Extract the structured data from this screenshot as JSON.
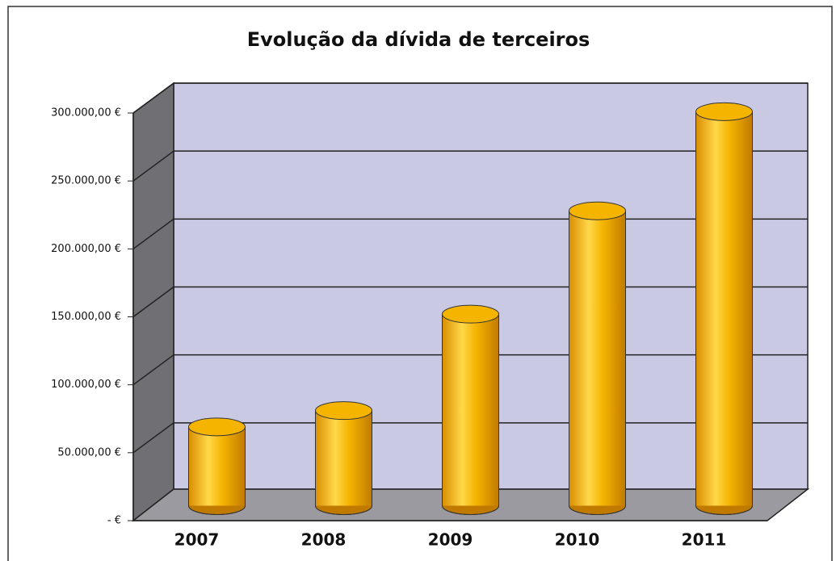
{
  "chart_data": {
    "type": "bar3d",
    "title": "Evolução da dívida de terceiros",
    "categories": [
      "2007",
      "2008",
      "2009",
      "2010",
      "2011"
    ],
    "values": [
      58000,
      70000,
      141000,
      217000,
      290000
    ],
    "color": "#f5b400",
    "ylim": [
      0,
      300000
    ],
    "yticks": [
      {
        "value": 0,
        "label": "- €"
      },
      {
        "value": 50000,
        "label": "50.000,00 €"
      },
      {
        "value": 100000,
        "label": "100.000,00 €"
      },
      {
        "value": 150000,
        "label": "150.000,00 €"
      },
      {
        "value": 200000,
        "label": "200.000,00 €"
      },
      {
        "value": 250000,
        "label": "250.000,00 €"
      },
      {
        "value": 300000,
        "label": "300.000,00 €"
      }
    ],
    "grid": true
  }
}
